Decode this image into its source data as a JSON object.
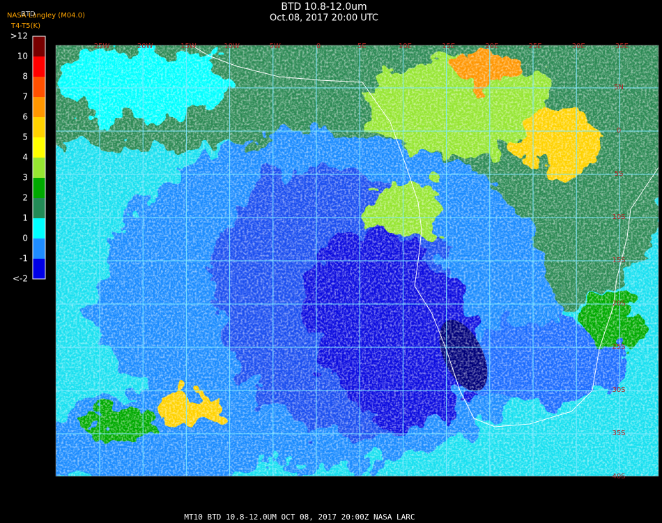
{
  "header": {
    "title": "BTD 10.8-12.0um",
    "subtitle": "Oct.08, 2017 20:00 UTC",
    "source": "NASA Langley (M04.0)",
    "product": "BTD",
    "units": "T4-T5(K)"
  },
  "legend": {
    "labels": [
      ">12",
      "10",
      "8",
      "7",
      "6",
      "5",
      "4",
      "3",
      "2",
      "1",
      "0",
      "-1",
      "<-2"
    ],
    "colors": [
      "#780000",
      "#ff0000",
      "#ff5000",
      "#ff9600",
      "#ffd200",
      "#ffff00",
      "#96e632",
      "#00aa00",
      "#238b57",
      "#00ffff",
      "#1e8cff",
      "#0000e6"
    ]
  },
  "map": {
    "lon_labels": [
      "25W",
      "20W",
      "15W",
      "10W",
      "5W",
      "0",
      "5E",
      "10E",
      "15E",
      "20E",
      "25E",
      "30E",
      "35E"
    ],
    "lat_labels": [
      "5N",
      "0",
      "5S",
      "10S",
      "15S",
      "20S",
      "25S",
      "30S",
      "35S",
      "40S"
    ]
  },
  "footer": "MT10  BTD 10.8-12.0UM   OCT 08, 2017 20:00Z   NASA LARC"
}
